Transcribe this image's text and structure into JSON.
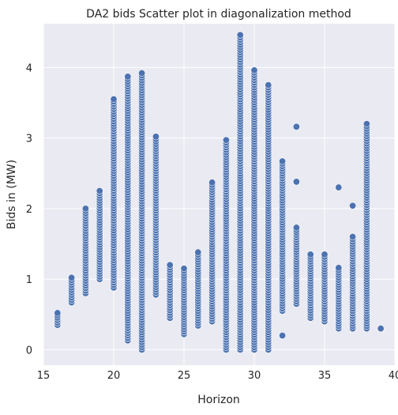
{
  "chart_data": {
    "type": "scatter",
    "title": "DA2 bids Scatter plot in diagonalization method",
    "xlabel": "Horizon",
    "ylabel": "Bids in (MW)",
    "xlim": [
      15,
      40
    ],
    "ylim": [
      -0.22,
      4.62
    ],
    "x_ticks": [
      15,
      20,
      25,
      30,
      35,
      40
    ],
    "y_ticks": [
      0,
      1,
      2,
      3,
      4
    ],
    "x_tick_labels": [
      "15",
      "20",
      "25",
      "30",
      "35",
      "40"
    ],
    "y_tick_labels": [
      "0",
      "1",
      "2",
      "3",
      "4"
    ],
    "grid": true,
    "legend": "none",
    "style": {
      "background": "#eaeaf2",
      "grid_color": "#ffffff",
      "marker_color": "#4c72b0",
      "marker_edge": "#ffffff"
    },
    "columns": [
      {
        "x": 16,
        "ymin": 0.35,
        "ymax": 0.52,
        "outliers": []
      },
      {
        "x": 17,
        "ymin": 0.67,
        "ymax": 1.02,
        "outliers": []
      },
      {
        "x": 18,
        "ymin": 0.8,
        "ymax": 2.0,
        "outliers": []
      },
      {
        "x": 19,
        "ymin": 1.0,
        "ymax": 2.25,
        "outliers": []
      },
      {
        "x": 20,
        "ymin": 0.88,
        "ymax": 3.55,
        "outliers": []
      },
      {
        "x": 21,
        "ymin": 0.13,
        "ymax": 3.87,
        "outliers": []
      },
      {
        "x": 22,
        "ymin": 0.0,
        "ymax": 3.92,
        "outliers": []
      },
      {
        "x": 23,
        "ymin": 0.78,
        "ymax": 3.02,
        "outliers": []
      },
      {
        "x": 24,
        "ymin": 0.45,
        "ymax": 1.2,
        "outliers": []
      },
      {
        "x": 25,
        "ymin": 0.22,
        "ymax": 1.15,
        "outliers": []
      },
      {
        "x": 26,
        "ymin": 0.34,
        "ymax": 1.38,
        "outliers": []
      },
      {
        "x": 27,
        "ymin": 0.4,
        "ymax": 2.37,
        "outliers": []
      },
      {
        "x": 28,
        "ymin": 0.0,
        "ymax": 2.97,
        "outliers": []
      },
      {
        "x": 29,
        "ymin": 0.0,
        "ymax": 4.46,
        "outliers": []
      },
      {
        "x": 30,
        "ymin": 0.0,
        "ymax": 3.96,
        "outliers": []
      },
      {
        "x": 31,
        "ymin": 0.0,
        "ymax": 3.75,
        "outliers": []
      },
      {
        "x": 32,
        "ymin": 0.55,
        "ymax": 2.67,
        "outliers": [
          0.2
        ]
      },
      {
        "x": 33,
        "ymin": 0.65,
        "ymax": 1.73,
        "outliers": [
          2.38,
          3.16
        ]
      },
      {
        "x": 34,
        "ymin": 0.45,
        "ymax": 1.35,
        "outliers": []
      },
      {
        "x": 35,
        "ymin": 0.4,
        "ymax": 1.35,
        "outliers": []
      },
      {
        "x": 36,
        "ymin": 0.3,
        "ymax": 1.16,
        "outliers": [
          2.3
        ]
      },
      {
        "x": 37,
        "ymin": 0.3,
        "ymax": 1.6,
        "outliers": [
          2.04
        ]
      },
      {
        "x": 38,
        "ymin": 0.3,
        "ymax": 3.2,
        "outliers": []
      },
      {
        "x": 39,
        "ymin": 0.3,
        "ymax": 0.3,
        "outliers": []
      }
    ]
  }
}
